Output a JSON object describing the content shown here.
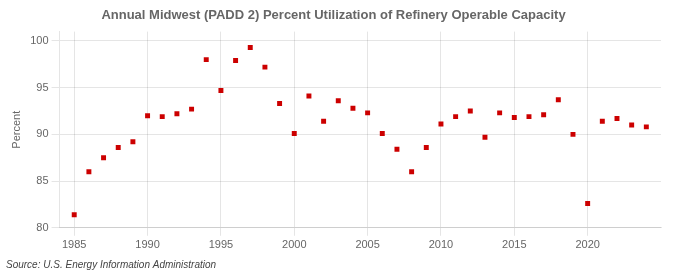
{
  "chart_data": {
    "type": "scatter",
    "title": "Annual Midwest (PADD 2) Percent Utilization of Refinery Operable Capacity",
    "ylabel": "Percent",
    "annotations": [
      "Source: U.S. Energy Information Administration"
    ],
    "x": [
      1985,
      1986,
      1987,
      1988,
      1989,
      1990,
      1991,
      1992,
      1993,
      1994,
      1995,
      1996,
      1997,
      1998,
      1999,
      2000,
      2001,
      2002,
      2003,
      2004,
      2005,
      2006,
      2007,
      2008,
      2009,
      2010,
      2011,
      2012,
      2013,
      2014,
      2015,
      2016,
      2017,
      2018,
      2019,
      2020,
      2021,
      2022,
      2023,
      2024
    ],
    "values": [
      81.4,
      86.0,
      87.5,
      88.6,
      89.2,
      92.0,
      91.9,
      92.2,
      92.7,
      98.0,
      94.7,
      97.9,
      99.3,
      97.2,
      93.3,
      90.1,
      94.1,
      91.4,
      93.6,
      92.8,
      92.3,
      90.1,
      88.4,
      86.0,
      88.6,
      91.1,
      91.9,
      92.5,
      89.7,
      92.3,
      91.8,
      91.9,
      92.1,
      93.7,
      90.0,
      82.6,
      91.4,
      91.7,
      91.0,
      90.8
    ],
    "color": "#cc0000",
    "marker": "square",
    "xlim": [
      1984,
      2025
    ],
    "xticks": [
      1985,
      1990,
      1995,
      2000,
      2005,
      2010,
      2015,
      2020
    ],
    "ylim": [
      80,
      101
    ],
    "yticks": [
      80,
      85,
      90,
      95,
      100
    ],
    "grid": true
  }
}
